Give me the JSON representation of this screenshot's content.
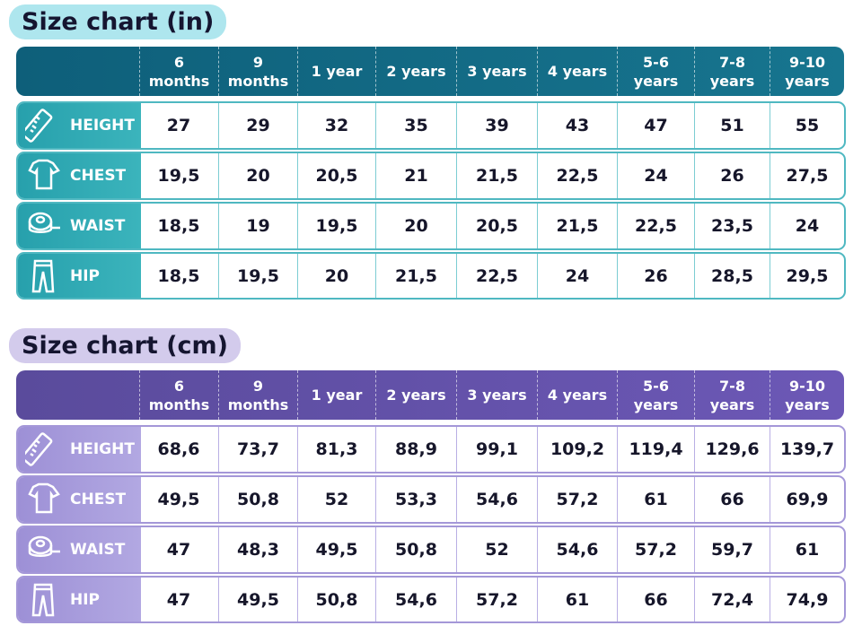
{
  "tables": [
    {
      "title": "Size chart (in)",
      "columns": [
        [
          "6",
          "months"
        ],
        [
          "9",
          "months"
        ],
        [
          "1 year"
        ],
        [
          "2 years"
        ],
        [
          "3 years"
        ],
        [
          "4 years"
        ],
        [
          "5-6",
          "years"
        ],
        [
          "7-8",
          "years"
        ],
        [
          "9-10",
          "years"
        ]
      ],
      "rows": [
        {
          "label": "HEIGHT",
          "values": [
            "27",
            "29",
            "32",
            "35",
            "39",
            "43",
            "47",
            "51",
            "55"
          ]
        },
        {
          "label": "CHEST",
          "values": [
            "19,5",
            "20",
            "20,5",
            "21",
            "21,5",
            "22,5",
            "24",
            "26",
            "27,5"
          ]
        },
        {
          "label": "WAIST",
          "values": [
            "18,5",
            "19",
            "19,5",
            "20",
            "20,5",
            "21,5",
            "22,5",
            "23,5",
            "24"
          ]
        },
        {
          "label": "HIP",
          "values": [
            "18,5",
            "19,5",
            "20",
            "21,5",
            "22,5",
            "24",
            "26",
            "28,5",
            "29,5"
          ]
        }
      ]
    },
    {
      "title": "Size chart (cm)",
      "columns": [
        [
          "6",
          "months"
        ],
        [
          "9",
          "months"
        ],
        [
          "1 year"
        ],
        [
          "2 years"
        ],
        [
          "3 years"
        ],
        [
          "4 years"
        ],
        [
          "5-6",
          "years"
        ],
        [
          "7-8",
          "years"
        ],
        [
          "9-10",
          "years"
        ]
      ],
      "rows": [
        {
          "label": "HEIGHT",
          "values": [
            "68,6",
            "73,7",
            "81,3",
            "88,9",
            "99,1",
            "109,2",
            "119,4",
            "129,6",
            "139,7"
          ]
        },
        {
          "label": "CHEST",
          "values": [
            "49,5",
            "50,8",
            "52",
            "53,3",
            "54,6",
            "57,2",
            "61",
            "66",
            "69,9"
          ]
        },
        {
          "label": "WAIST",
          "values": [
            "47",
            "48,3",
            "49,5",
            "50,8",
            "52",
            "54,6",
            "57,2",
            "59,7",
            "61"
          ]
        },
        {
          "label": "HIP",
          "values": [
            "47",
            "49,5",
            "50,8",
            "54,6",
            "57,2",
            "61",
            "66",
            "72,4",
            "74,9"
          ]
        }
      ]
    }
  ]
}
